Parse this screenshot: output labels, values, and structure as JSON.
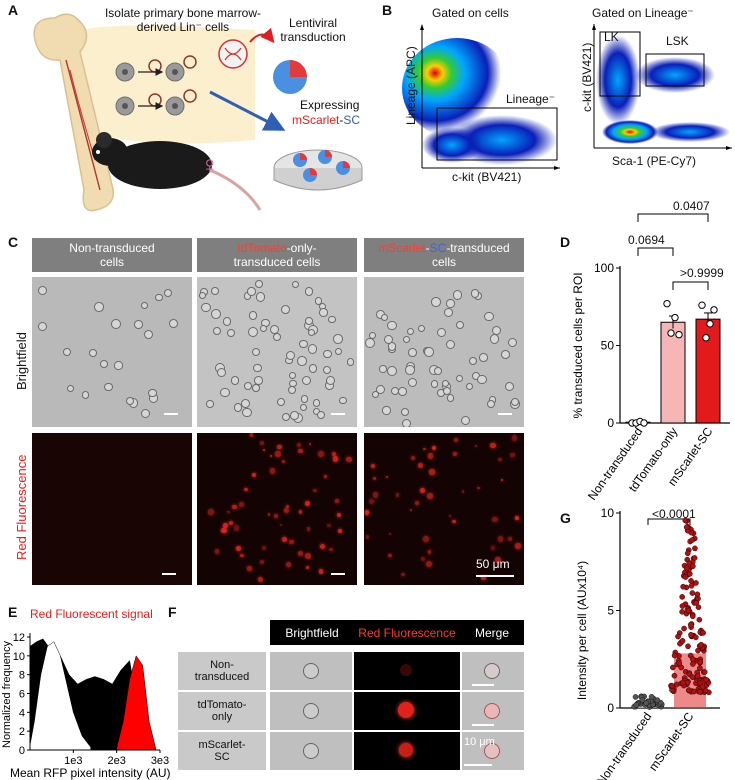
{
  "panels": {
    "A": {
      "label": "A",
      "isolate_text": "Isolate primary bone marrow-derived Lin⁻ cells",
      "lenti_text": "Lentiviral transduction",
      "expressing_text": "Expressing",
      "mscarlet": "mScarlet",
      "dash": "-",
      "sc": "SC",
      "female_symbol": "♀"
    },
    "B": {
      "label": "B",
      "left_title": "Gated on cells",
      "right_title": "Gated on Lineage⁻",
      "left_ylabel": "Lineage (APC)",
      "left_xlabel": "c-kit (BV421)",
      "gate_lineage": "Lineage⁻",
      "right_ylabel": "c-kit (BV421)",
      "right_xlabel": "Sca-1 (PE-Cy7)",
      "gate_lk": "LK",
      "gate_lsk": "LSK"
    },
    "C": {
      "label": "C",
      "col1": "Non-transduced cells",
      "col2_red": "tdTomato",
      "col2_rest": "-only-transduced cells",
      "col3_red": "mScarlet",
      "col3_dash": "-",
      "col3_blue": "SC",
      "col3_rest": "-transduced cells",
      "row1": "Brightfield",
      "row2": "Red Fluorescence",
      "scale": "50 μm"
    },
    "D": {
      "label": "D",
      "p1": "0.0407",
      "p2": "0.0694",
      "p3": ">0.9999"
    },
    "E": {
      "label": "E",
      "title": "Red Fluorescent signal"
    },
    "F": {
      "label": "F",
      "headers": [
        "Brightfield",
        "Red Fluorescence",
        "Merge"
      ],
      "rows": [
        "Non-transduced",
        "tdTomato-only",
        "mScarlet-SC"
      ],
      "scale": "10 μm"
    },
    "G": {
      "label": "G",
      "p": "<0.0001"
    }
  },
  "chart_data": [
    {
      "type": "bar",
      "panel": "D",
      "categories": [
        "Non-transduced",
        "tdTomato-only",
        "mScarlet-SC"
      ],
      "values": [
        0.5,
        65,
        67
      ],
      "errors": [
        0.3,
        4,
        4
      ],
      "points": [
        [
          0,
          0,
          1,
          0
        ],
        [
          77,
          58,
          68,
          57
        ],
        [
          76,
          55,
          64,
          73
        ]
      ],
      "colors": [
        "#ffffff",
        "#f7b6b6",
        "#e31a1c"
      ],
      "ylabel": "% transduced cells per ROI",
      "ylim": [
        0,
        100
      ],
      "yticks": [
        0,
        50,
        100
      ]
    },
    {
      "type": "area",
      "panel": "E",
      "xlabel": "Mean RFP pixel intensity (AU)",
      "ylabel": "Normalized frequency",
      "xticks": [
        "1e3",
        "2e3",
        "3e3"
      ],
      "yticks": [
        0,
        2,
        4,
        6,
        8,
        10,
        12
      ],
      "xlim": [
        0,
        3000
      ],
      "ylim": [
        0,
        12
      ],
      "series": [
        {
          "name": "Non-transduced",
          "color": "#000000",
          "x": [
            0,
            150,
            300,
            500,
            700,
            900,
            1100,
            1300,
            1500,
            1700,
            1900,
            2100,
            2300,
            2500,
            2700
          ],
          "y": [
            11,
            11.5,
            11.8,
            10.5,
            10,
            8,
            7,
            7.5,
            7.8,
            7.5,
            7,
            8.5,
            9.5,
            4,
            0.2
          ]
        },
        {
          "name": "Non-transduced-inner",
          "color": "#ffffff",
          "x": [
            0,
            100,
            250,
            400,
            550,
            700,
            850,
            1000,
            1200,
            1400
          ],
          "y": [
            0.5,
            3,
            8,
            11,
            11.5,
            10,
            7,
            4,
            1.5,
            0.3
          ]
        },
        {
          "name": "mScarlet-SC",
          "color": "#ff0000",
          "x": [
            2000,
            2150,
            2300,
            2450,
            2600,
            2750,
            2900
          ],
          "y": [
            0.2,
            3,
            7.5,
            10,
            9,
            3,
            0.2
          ]
        }
      ]
    },
    {
      "type": "scatter",
      "panel": "G",
      "categories": [
        "Non-transduced",
        "mScarlet-SC"
      ],
      "ylabel": "Intensity per cell (AUx10⁴)",
      "ylim": [
        0,
        10
      ],
      "yticks": [
        0,
        5,
        10
      ],
      "bar_means": [
        0.3,
        2.8
      ],
      "ranges": [
        [
          0.05,
          0.6
        ],
        [
          0.8,
          9.8
        ]
      ],
      "colors": [
        "#555555",
        "#b01010"
      ]
    }
  ]
}
